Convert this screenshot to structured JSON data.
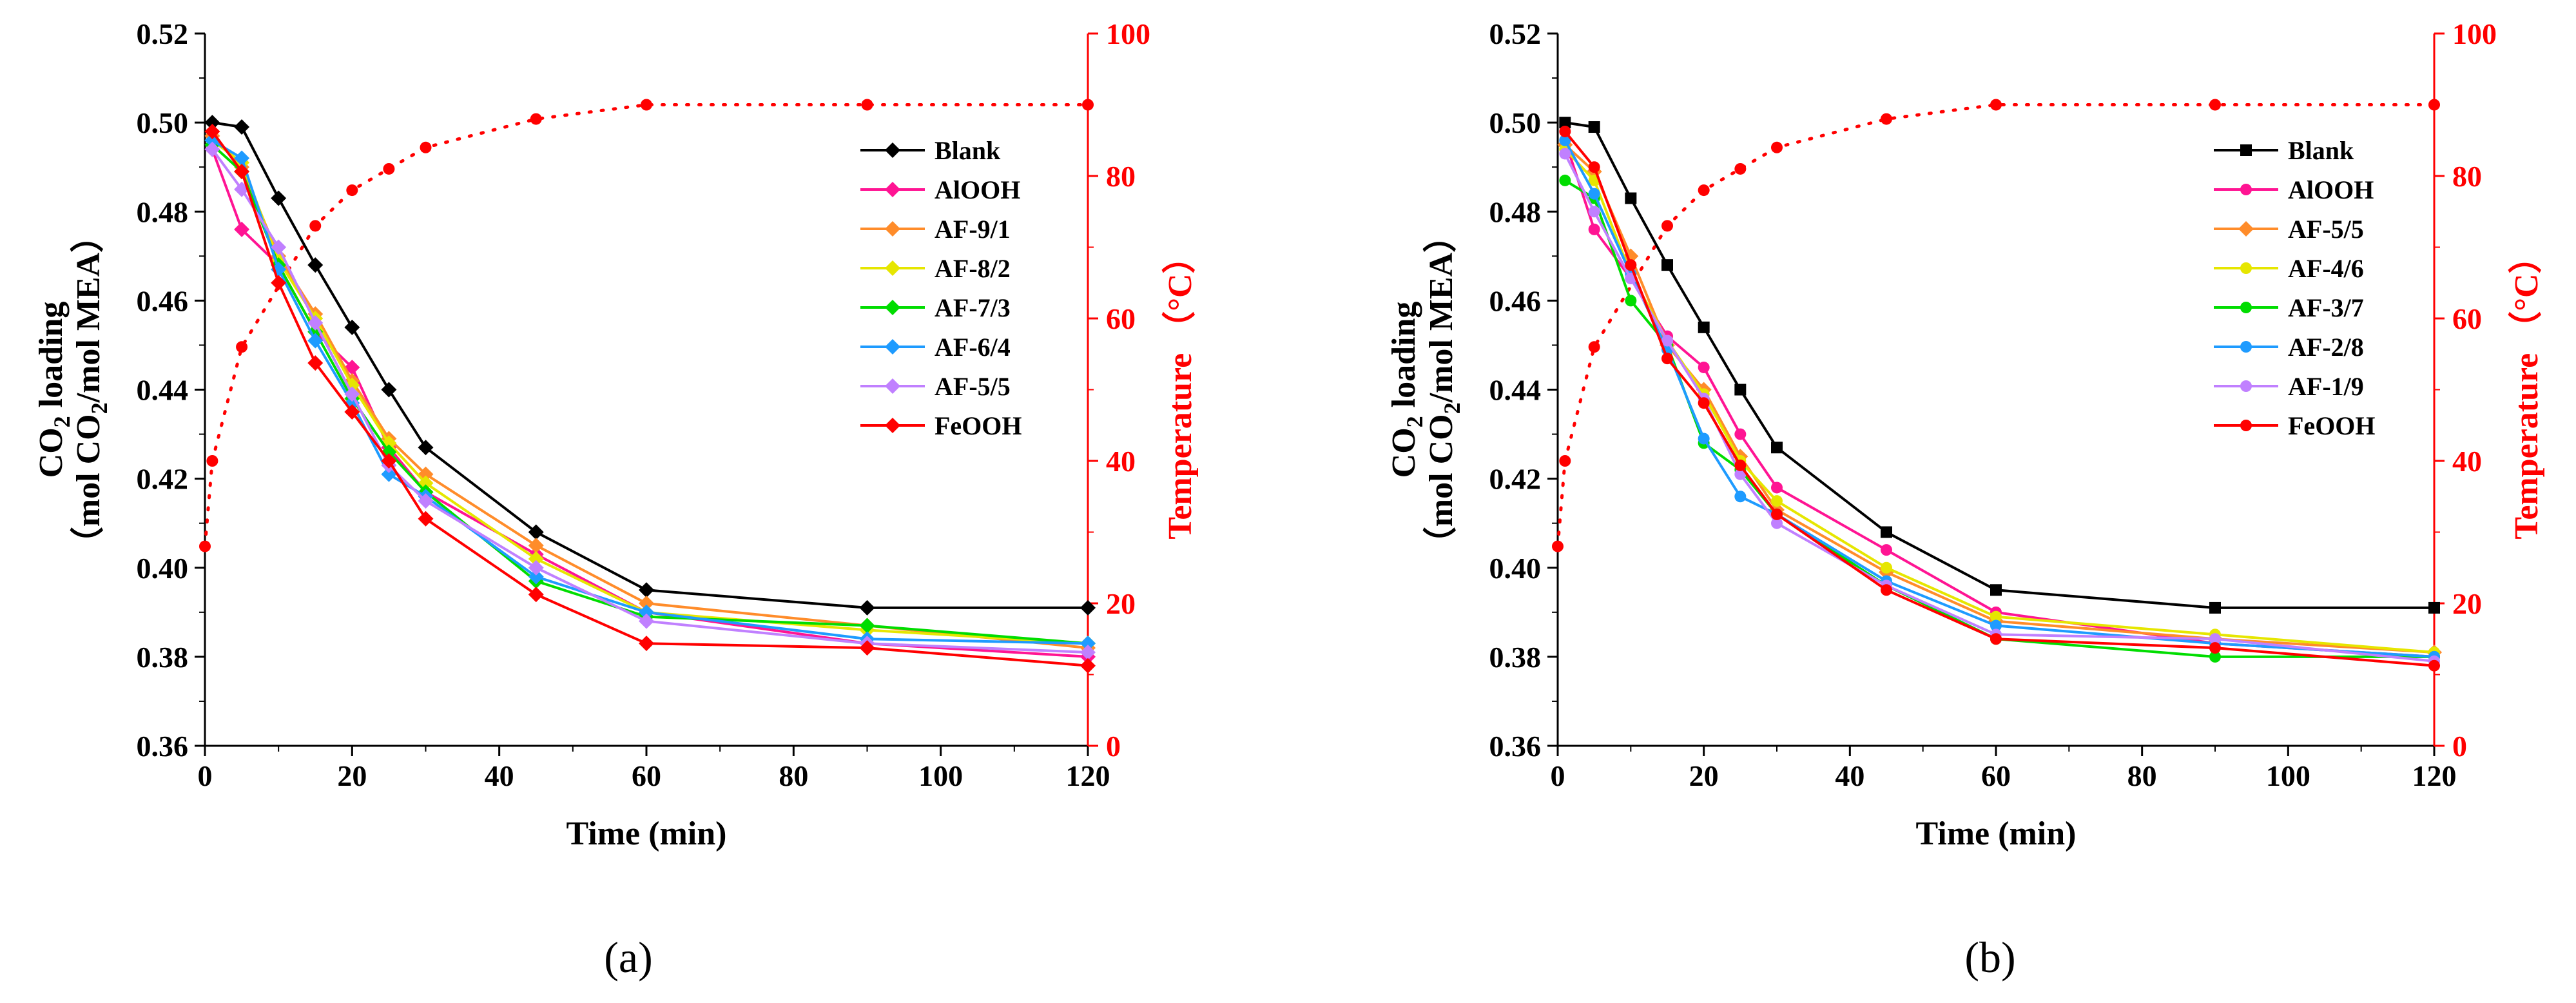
{
  "chart_data": [
    {
      "panel_label": "(a)",
      "type": "line",
      "xlabel": "Time (min)",
      "ylabel_line1": "CO",
      "ylabel_sub1": "2",
      "ylabel_line1b": " loading",
      "ylabel_line2": "（mol CO",
      "ylabel_sub2": "2",
      "ylabel_line2b": "/mol MEA）",
      "y2label": "Temperature （°C）",
      "xlim": [
        0,
        120
      ],
      "ylim": [
        0.36,
        0.52
      ],
      "y2lim": [
        0,
        100
      ],
      "xticks": [
        "0",
        "20",
        "40",
        "60",
        "80",
        "100",
        "120"
      ],
      "yticks": [
        "0.36",
        "0.38",
        "0.40",
        "0.42",
        "0.44",
        "0.46",
        "0.48",
        "0.50",
        "0.52"
      ],
      "y2ticks": [
        "0",
        "20",
        "40",
        "60",
        "80",
        "100"
      ],
      "x": [
        1,
        5,
        10,
        15,
        20,
        25,
        30,
        45,
        60,
        90,
        120
      ],
      "series": [
        {
          "name": "Blank",
          "color": "#000000",
          "marker": "diamond",
          "values": [
            0.5,
            0.499,
            0.483,
            0.468,
            0.454,
            0.44,
            0.427,
            0.408,
            0.395,
            0.391,
            0.391
          ]
        },
        {
          "name": "AlOOH",
          "color": "#ff1493",
          "marker": "diamond",
          "values": [
            0.494,
            0.476,
            0.468,
            0.453,
            0.445,
            0.427,
            0.417,
            0.403,
            0.39,
            0.383,
            0.38
          ]
        },
        {
          "name": "AF-9/1",
          "color": "#ff8c2a",
          "marker": "diamond",
          "values": [
            0.497,
            0.49,
            0.47,
            0.457,
            0.442,
            0.429,
            0.421,
            0.405,
            0.392,
            0.387,
            0.382
          ]
        },
        {
          "name": "AF-8/2",
          "color": "#e6e600",
          "marker": "diamond",
          "values": [
            0.496,
            0.491,
            0.469,
            0.456,
            0.441,
            0.428,
            0.419,
            0.402,
            0.39,
            0.386,
            0.383
          ]
        },
        {
          "name": "AF-7/3",
          "color": "#00dd00",
          "marker": "diamond",
          "values": [
            0.495,
            0.489,
            0.468,
            0.453,
            0.438,
            0.426,
            0.417,
            0.397,
            0.389,
            0.387,
            0.383
          ]
        },
        {
          "name": "AF-6/4",
          "color": "#1e9bff",
          "marker": "diamond",
          "values": [
            0.496,
            0.492,
            0.467,
            0.451,
            0.437,
            0.421,
            0.416,
            0.398,
            0.39,
            0.384,
            0.383
          ]
        },
        {
          "name": "AF-5/5",
          "color": "#c080ff",
          "marker": "diamond",
          "values": [
            0.494,
            0.485,
            0.472,
            0.455,
            0.439,
            0.423,
            0.415,
            0.4,
            0.388,
            0.383,
            0.381
          ]
        },
        {
          "name": "FeOOH",
          "color": "#ff0000",
          "marker": "diamond",
          "values": [
            0.498,
            0.489,
            0.464,
            0.446,
            0.435,
            0.424,
            0.411,
            0.394,
            0.383,
            0.382,
            0.378
          ]
        }
      ],
      "temperature": {
        "name": "Temperature",
        "color": "#ff0000",
        "x": [
          0,
          1,
          5,
          15,
          20,
          25,
          30,
          45,
          60,
          90,
          120
        ],
        "values": [
          28,
          40,
          56,
          73,
          78,
          81,
          84,
          88,
          90,
          90,
          90
        ]
      }
    },
    {
      "panel_label": "(b)",
      "type": "line",
      "xlabel": "Time (min)",
      "ylabel_line1": "CO",
      "ylabel_sub1": "2",
      "ylabel_line1b": " loading",
      "ylabel_line2": "（mol CO",
      "ylabel_sub2": "2",
      "ylabel_line2b": "/mol MEA）",
      "y2label": "Temperature （°C）",
      "xlim": [
        0,
        120
      ],
      "ylim": [
        0.36,
        0.52
      ],
      "y2lim": [
        0,
        100
      ],
      "xticks": [
        "0",
        "20",
        "40",
        "60",
        "80",
        "100",
        "120"
      ],
      "yticks": [
        "0.36",
        "0.38",
        "0.40",
        "0.42",
        "0.44",
        "0.46",
        "0.48",
        "0.50",
        "0.52"
      ],
      "y2ticks": [
        "0",
        "20",
        "40",
        "60",
        "80",
        "100"
      ],
      "x": [
        1,
        5,
        10,
        15,
        20,
        25,
        30,
        45,
        60,
        90,
        120
      ],
      "series": [
        {
          "name": "Blank",
          "color": "#000000",
          "marker": "square",
          "values": [
            0.5,
            0.499,
            0.483,
            0.468,
            0.454,
            0.44,
            0.427,
            0.408,
            0.395,
            0.391,
            0.391
          ]
        },
        {
          "name": "AlOOH",
          "color": "#ff1493",
          "marker": "circle",
          "values": [
            0.496,
            0.476,
            0.465,
            0.452,
            0.445,
            0.43,
            0.418,
            0.404,
            0.39,
            0.383,
            0.38
          ]
        },
        {
          "name": "AF-5/5",
          "color": "#ff8c2a",
          "marker": "diamond",
          "values": [
            0.495,
            0.489,
            0.47,
            0.45,
            0.44,
            0.425,
            0.413,
            0.399,
            0.388,
            0.384,
            0.381
          ]
        },
        {
          "name": "AF-4/6",
          "color": "#e6e600",
          "marker": "circle",
          "values": [
            0.494,
            0.487,
            0.466,
            0.451,
            0.439,
            0.424,
            0.415,
            0.4,
            0.389,
            0.385,
            0.381
          ]
        },
        {
          "name": "AF-3/7",
          "color": "#00dd00",
          "marker": "circle",
          "values": [
            0.487,
            0.483,
            0.46,
            0.45,
            0.428,
            0.422,
            0.412,
            0.396,
            0.384,
            0.38,
            0.38
          ]
        },
        {
          "name": "AF-2/8",
          "color": "#1e9bff",
          "marker": "circle",
          "values": [
            0.496,
            0.484,
            0.466,
            0.449,
            0.429,
            0.416,
            0.412,
            0.397,
            0.387,
            0.383,
            0.38
          ]
        },
        {
          "name": "AF-1/9",
          "color": "#c080ff",
          "marker": "circle",
          "values": [
            0.493,
            0.48,
            0.465,
            0.451,
            0.438,
            0.421,
            0.41,
            0.396,
            0.385,
            0.384,
            0.379
          ]
        },
        {
          "name": "FeOOH",
          "color": "#ff0000",
          "marker": "circle",
          "values": [
            0.498,
            0.49,
            0.468,
            0.447,
            0.437,
            0.423,
            0.412,
            0.395,
            0.384,
            0.382,
            0.378
          ]
        }
      ],
      "temperature": {
        "name": "Temperature",
        "color": "#ff0000",
        "x": [
          0,
          1,
          5,
          15,
          20,
          25,
          30,
          45,
          60,
          90,
          120
        ],
        "values": [
          28,
          40,
          56,
          73,
          78,
          81,
          84,
          88,
          90,
          90,
          90
        ]
      }
    }
  ]
}
